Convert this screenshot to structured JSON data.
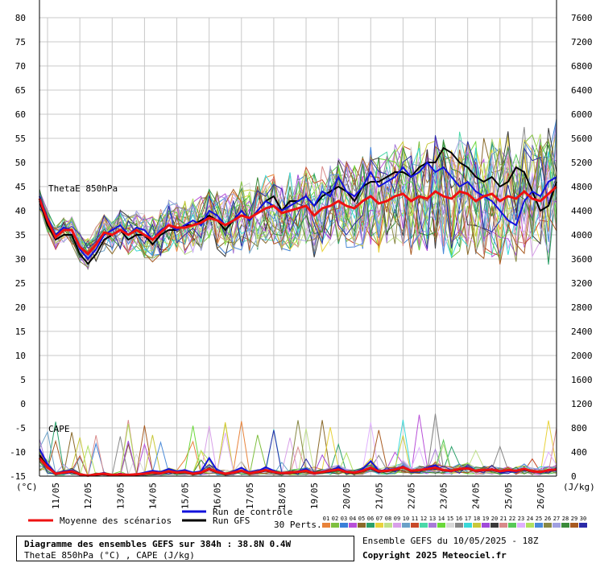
{
  "chart_data": {
    "type": "line",
    "title": "Diagramme des ensembles GEFS sur 384h : 38.8N 0.4W",
    "subtitle": "ThetaE 850hPa (°C) , CAPE (J/kg)",
    "panel_thetae_label": "ThetaE 850hPa",
    "panel_cape_label": "CAPE",
    "y_left_unit": "(°C)",
    "y_right_unit": "(J/kg)",
    "y_left_ticks": [
      80,
      75,
      70,
      65,
      60,
      55,
      50,
      45,
      40,
      35,
      30,
      25,
      20,
      15,
      10,
      5,
      0,
      -5,
      -10,
      -15
    ],
    "y_right_ticks": [
      7600,
      7200,
      6800,
      6400,
      6000,
      5600,
      5200,
      4800,
      4400,
      4000,
      3600,
      3200,
      2800,
      2400,
      2000,
      1600,
      1200,
      800,
      400,
      0
    ],
    "ylim_left": [
      -15,
      80
    ],
    "ylim_right": [
      0,
      7600
    ],
    "x_ticks": [
      "11/05",
      "12/05",
      "13/05",
      "14/05",
      "15/05",
      "16/05",
      "17/05",
      "18/05",
      "19/05",
      "20/05",
      "21/05",
      "22/05",
      "23/05",
      "24/05",
      "25/05",
      "26/05"
    ],
    "x_step_hours": 6,
    "x_points": 65,
    "grid": true,
    "legend": {
      "mean_label": "Moyenne des scénarios",
      "control_label": "Run de contrôle",
      "gfs_label": "Run GFS",
      "perts_label": "30 Perts.",
      "pert_numbers": [
        "01",
        "02",
        "03",
        "04",
        "05",
        "06",
        "07",
        "08",
        "09",
        "10",
        "11",
        "12",
        "13",
        "14",
        "15",
        "16",
        "17",
        "18",
        "19",
        "20",
        "21",
        "22",
        "23",
        "24",
        "25",
        "26",
        "27",
        "28",
        "29",
        "30"
      ],
      "pert_colors": [
        "#e8833a",
        "#7fbf3f",
        "#3a7fd8",
        "#b84fd8",
        "#8a6a2a",
        "#2aa06a",
        "#e8d23a",
        "#bfe08a",
        "#d8a0e8",
        "#6aa0c8",
        "#c84a2a",
        "#4ad8a8",
        "#a87ad8",
        "#6ad83a",
        "#d8d8d8",
        "#888888",
        "#3ad8d8",
        "#c8c83a",
        "#a04ad8",
        "#3a3a3a",
        "#d88a8a",
        "#58c858",
        "#e0b0ff",
        "#b0e060",
        "#4a8ad8",
        "#888844",
        "#a0a0e0",
        "#3a8a3a",
        "#a85a20",
        "#2a2aa8"
      ],
      "mean_color": "#ee1111",
      "control_color": "#1111dd",
      "gfs_color": "#000000"
    },
    "series": [
      {
        "name": "Moyenne des scénarios",
        "panel": "thetae",
        "values": [
          42.5,
          38,
          34.5,
          36,
          36,
          32.5,
          31,
          33,
          35.5,
          35,
          36,
          35,
          36,
          35,
          34,
          35.5,
          37,
          36.5,
          36.5,
          37,
          37.5,
          38.5,
          38,
          37,
          38,
          39,
          38.5,
          39.5,
          40.5,
          41,
          39.5,
          40,
          40.5,
          41,
          39,
          40.5,
          41,
          42,
          41,
          40.5,
          42,
          43,
          41.5,
          42,
          43,
          43.5,
          42,
          43,
          42.5,
          44,
          43,
          42.5,
          44,
          43.5,
          42,
          43,
          43.5,
          42,
          43,
          42.5,
          44,
          42.5,
          42,
          43.5,
          45
        ]
      },
      {
        "name": "Run de contrôle",
        "panel": "thetae",
        "values": [
          43,
          38.5,
          35,
          36.5,
          36,
          32,
          30,
          32,
          35,
          36,
          37,
          35,
          36.5,
          36,
          34,
          36,
          37,
          36,
          37,
          38,
          37,
          40,
          39,
          37,
          38,
          40,
          38,
          40,
          42,
          41,
          40,
          41,
          42,
          43,
          41,
          44,
          43,
          47,
          44,
          43,
          45,
          48,
          45,
          46,
          47,
          49,
          47,
          48,
          50,
          48,
          49,
          47,
          45,
          46,
          44,
          43,
          42,
          40,
          38,
          37,
          42,
          44,
          43,
          46,
          47
        ]
      },
      {
        "name": "Run GFS",
        "panel": "thetae",
        "values": [
          42,
          37,
          34,
          35,
          35,
          31,
          29,
          31,
          34,
          35,
          36,
          34,
          35,
          35,
          33,
          35,
          36,
          36,
          37,
          37,
          38,
          39,
          38,
          36,
          38,
          40,
          38,
          40,
          42,
          43,
          40,
          42,
          42,
          43,
          41,
          43,
          44,
          45,
          44,
          42,
          45,
          46,
          46,
          47,
          48,
          48,
          47,
          49,
          50,
          50,
          53,
          52,
          50,
          49,
          47,
          46,
          47,
          45,
          46,
          49,
          48,
          44,
          40,
          41,
          46
        ]
      },
      {
        "name": "Moyenne des scénarios",
        "panel": "cape",
        "values": [
          300,
          150,
          40,
          60,
          80,
          30,
          10,
          30,
          40,
          20,
          30,
          20,
          30,
          40,
          60,
          50,
          80,
          60,
          70,
          40,
          60,
          120,
          70,
          40,
          60,
          90,
          50,
          70,
          100,
          70,
          50,
          60,
          70,
          90,
          50,
          70,
          90,
          110,
          70,
          60,
          90,
          140,
          80,
          90,
          110,
          150,
          90,
          100,
          120,
          140,
          100,
          90,
          120,
          130,
          90,
          100,
          110,
          80,
          100,
          90,
          120,
          80,
          70,
          100,
          110
        ]
      },
      {
        "name": "Run de contrôle",
        "panel": "cape",
        "values": [
          450,
          200,
          50,
          80,
          100,
          20,
          10,
          30,
          50,
          20,
          40,
          20,
          30,
          60,
          90,
          70,
          120,
          80,
          100,
          60,
          80,
          300,
          90,
          40,
          80,
          140,
          60,
          80,
          150,
          90,
          40,
          60,
          80,
          120,
          40,
          80,
          100,
          140,
          80,
          60,
          120,
          250,
          90,
          100,
          120,
          160,
          80,
          100,
          140,
          180,
          90,
          80,
          120,
          150,
          80,
          90,
          120,
          60,
          80,
          70,
          120,
          70,
          60,
          90,
          100
        ]
      },
      {
        "name": "Run GFS",
        "panel": "cape",
        "values": [
          350,
          160,
          30,
          60,
          70,
          20,
          10,
          20,
          30,
          10,
          20,
          10,
          20,
          30,
          50,
          40,
          70,
          50,
          60,
          30,
          50,
          110,
          60,
          30,
          50,
          80,
          40,
          60,
          90,
          60,
          40,
          50,
          60,
          80,
          40,
          60,
          80,
          100,
          60,
          50,
          80,
          130,
          70,
          80,
          100,
          140,
          80,
          90,
          110,
          130,
          90,
          80,
          110,
          120,
          80,
          90,
          100,
          70,
          90,
          80,
          110,
          70,
          60,
          90,
          100
        ]
      }
    ]
  },
  "footer": {
    "info_title": "Diagramme des ensembles GEFS sur 384h : 38.8N 0.4W",
    "info_subtitle": "ThetaE 850hPa (°C) , CAPE (J/kg)",
    "ensemble_label": "Ensemble GEFS du 10/05/2025 - 18Z",
    "copyright": "Copyright 2025 Meteociel.fr"
  }
}
